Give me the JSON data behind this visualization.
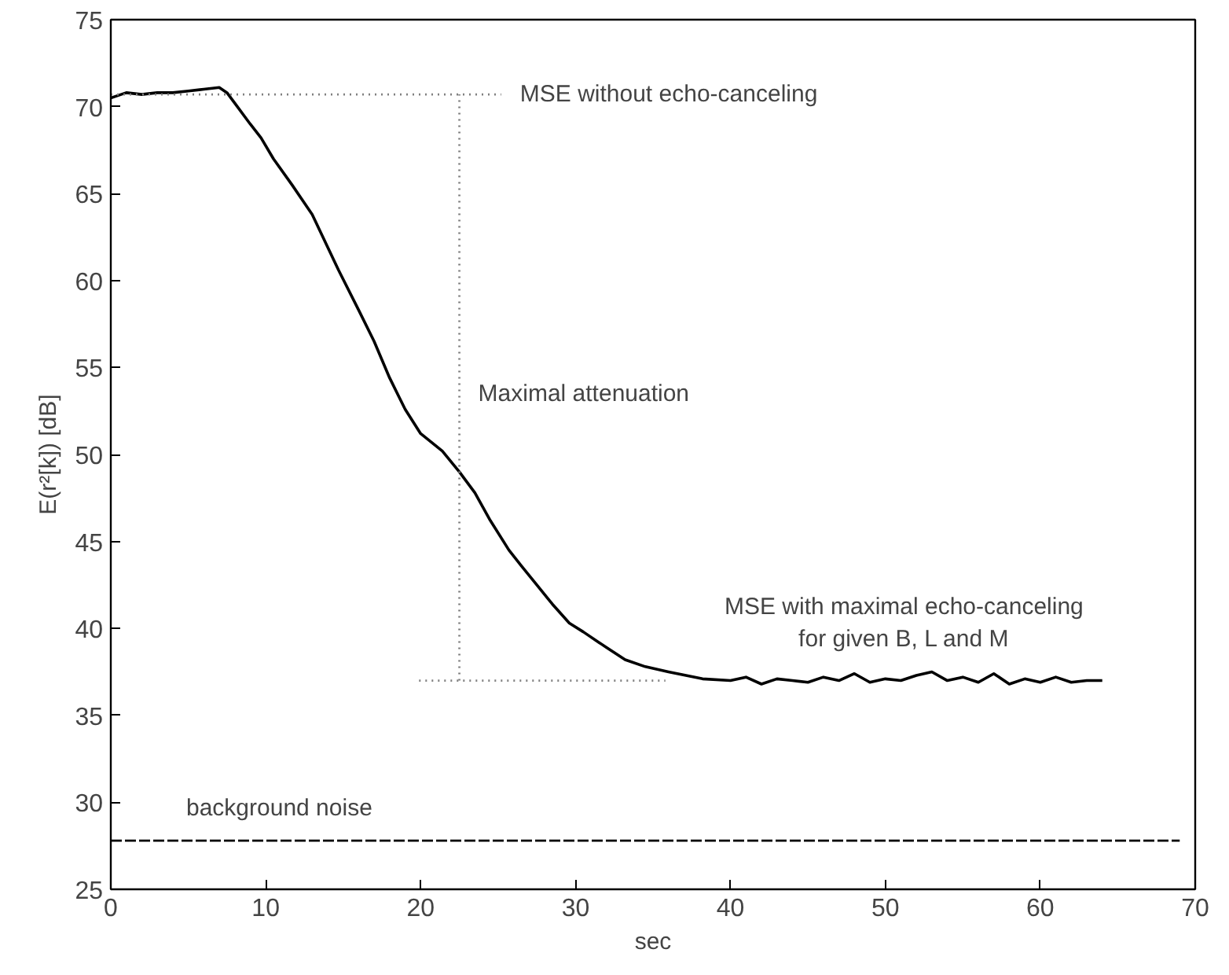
{
  "chart_data": {
    "type": "line",
    "xlabel": "sec",
    "ylabel": "E(r²[k]) [dB]",
    "xlim": [
      0,
      70
    ],
    "ylim": [
      25,
      75
    ],
    "xticks": [
      0,
      10,
      20,
      30,
      40,
      50,
      60,
      70
    ],
    "yticks": [
      25,
      30,
      35,
      40,
      45,
      50,
      55,
      60,
      65,
      70,
      75
    ],
    "series": [
      {
        "color": "#000000",
        "line_style": "solid",
        "x": [
          0,
          1,
          2,
          3,
          4,
          5,
          6,
          7,
          7.5,
          8,
          9,
          9.7,
          10.5,
          11.7,
          13,
          14.7,
          16,
          17,
          18,
          19,
          20,
          21.4,
          22.5,
          23.5,
          24.5,
          25.7,
          26.5,
          27.5,
          28.5,
          29.6,
          30.5,
          31.5,
          32,
          33.2,
          34.5,
          36,
          38.2,
          40,
          41,
          42,
          43,
          44,
          45,
          46,
          47,
          48,
          49,
          50,
          51,
          52,
          53,
          54,
          55,
          56,
          57,
          58,
          59,
          60,
          61,
          62,
          63,
          64
        ],
        "values": [
          70.5,
          70.8,
          70.7,
          70.8,
          70.8,
          70.9,
          71.0,
          71.1,
          70.8,
          70.2,
          69.0,
          68.2,
          67.0,
          65.5,
          63.8,
          60.6,
          58.3,
          56.5,
          54.4,
          52.6,
          51.2,
          50.2,
          49.0,
          47.8,
          46.2,
          44.5,
          43.6,
          42.5,
          41.4,
          40.3,
          39.8,
          39.2,
          38.9,
          38.2,
          37.8,
          37.5,
          37.1,
          37.0,
          37.2,
          36.8,
          37.1,
          37.0,
          36.9,
          37.2,
          37.0,
          37.4,
          36.9,
          37.1,
          37.0,
          37.3,
          37.5,
          37.0,
          37.2,
          36.9,
          37.4,
          36.8,
          37.1,
          36.9,
          37.2,
          36.9,
          37.0,
          37.0
        ]
      },
      {
        "color": "#000000",
        "line_style": "dashed",
        "x": [
          0,
          69
        ],
        "values": [
          27.8,
          27.8
        ]
      },
      {
        "color": "#808080",
        "line_style": "dotted",
        "x": [
          0,
          25.2
        ],
        "values": [
          70.7,
          70.7
        ]
      },
      {
        "color": "#808080",
        "line_style": "dotted",
        "x": [
          22.5,
          22.5
        ],
        "values": [
          37,
          70.7
        ]
      },
      {
        "color": "#808080",
        "line_style": "dotted",
        "x": [
          19.9,
          35.8
        ],
        "values": [
          37,
          37
        ]
      }
    ],
    "annotations": [
      "MSE without echo-canceling",
      "Maximal attenuation",
      "MSE with maximal echo-canceling\nfor given B, L and M",
      "background noise"
    ]
  }
}
